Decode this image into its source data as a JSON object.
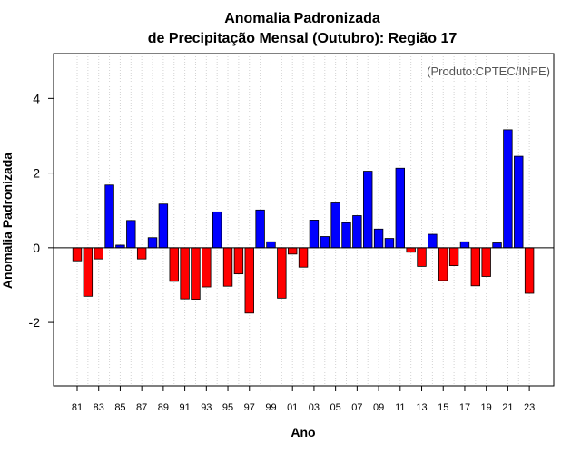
{
  "chart_data": {
    "type": "bar",
    "title": "Anomalia Padronizada",
    "subtitle": "de Precipitação Mensal (Outubro): Região 17",
    "credit": "(Produto:CPTEC/INPE)",
    "xlabel": "Ano",
    "ylabel": "Anomalia Padronizada",
    "ylim": [
      -3.7,
      5.2
    ],
    "yticks": [
      -2,
      0,
      2,
      4
    ],
    "ytick_labels": [
      "-2",
      "0",
      "2",
      "4"
    ],
    "grid": "vertical dotted lines at each year",
    "legend": "none",
    "categories": [
      "81",
      "82",
      "83",
      "84",
      "85",
      "86",
      "87",
      "88",
      "89",
      "90",
      "91",
      "92",
      "93",
      "94",
      "95",
      "96",
      "97",
      "98",
      "99",
      "00",
      "01",
      "02",
      "03",
      "04",
      "05",
      "06",
      "07",
      "08",
      "09",
      "10",
      "11",
      "12",
      "13",
      "14",
      "15",
      "16",
      "17",
      "18",
      "19",
      "20",
      "21",
      "22",
      "23"
    ],
    "xtick_labels": [
      "81",
      "83",
      "85",
      "87",
      "89",
      "91",
      "93",
      "95",
      "97",
      "99",
      "01",
      "03",
      "05",
      "07",
      "09",
      "11",
      "13",
      "15",
      "17",
      "19",
      "21",
      "23"
    ],
    "values": [
      -0.35,
      -1.3,
      -0.3,
      1.68,
      0.07,
      0.73,
      -0.3,
      0.27,
      1.17,
      -0.9,
      -1.37,
      -1.38,
      -1.05,
      0.96,
      -1.03,
      -0.7,
      -1.75,
      1.01,
      0.16,
      -1.35,
      -0.17,
      -0.52,
      0.74,
      0.3,
      1.2,
      0.67,
      0.86,
      2.05,
      0.5,
      0.25,
      2.13,
      -0.12,
      -0.5,
      0.36,
      -0.88,
      -0.48,
      0.16,
      -1.02,
      -0.77,
      0.13,
      3.16,
      2.45,
      -1.22
    ],
    "colors": {
      "positive": "#0000ff",
      "negative": "#ff0000",
      "zero_line": "#000000",
      "frame": "#000000",
      "grid": "#d3d3d3"
    }
  }
}
